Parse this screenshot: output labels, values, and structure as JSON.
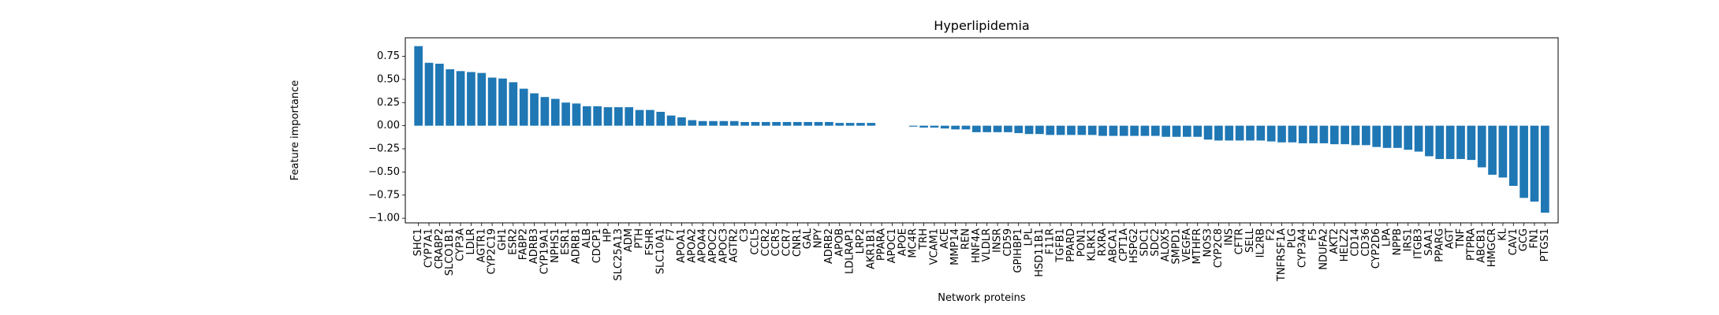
{
  "chart_data": {
    "type": "bar",
    "title": "Hyperlipidemia",
    "xlabel": "Network proteins",
    "ylabel": "Feature importance",
    "ylim": [
      -1.05,
      0.95
    ],
    "yticks": [
      -1.0,
      -0.75,
      -0.5,
      -0.25,
      0.0,
      0.25,
      0.5,
      0.75
    ],
    "ytick_labels": [
      "−1.00",
      "−0.75",
      "−0.50",
      "−0.25",
      "0.00",
      "0.25",
      "0.50",
      "0.75"
    ],
    "grid": false,
    "bar_color": "#1f77b4",
    "categories": [
      "SHC1",
      "CYP7A1",
      "CRABP2",
      "SLCO1B1",
      "CYP3A",
      "LDLR",
      "AGTR1",
      "CYP2C19",
      "GH1",
      "ESR2",
      "FABP2",
      "ADRB3",
      "CYP19A1",
      "NPHS1",
      "ESR1",
      "ADRB1",
      "ALB",
      "CDCP1",
      "HP",
      "SLC25A13",
      "ADM",
      "PTH",
      "FSHR",
      "SLC10A1",
      "F7",
      "APOA1",
      "APOA2",
      "APOA4",
      "APOC2",
      "APOC3",
      "AGTR2",
      "C3",
      "CCL5",
      "CCR2",
      "CCR5",
      "CCR7",
      "CNR1",
      "GAL",
      "NPY",
      "ADRB2",
      "APOB",
      "LDLRAP1",
      "LRP2",
      "AKR1B1",
      "PPARA",
      "APOC1",
      "APOE",
      "MC4R",
      "TRH",
      "VCAM1",
      "ACE",
      "MMP14",
      "REN",
      "HNF4A",
      "VLDLR",
      "INSR",
      "CD59",
      "GPIHBP1",
      "LPL",
      "HSD11B1",
      "F11R",
      "TGFB1",
      "PPARD",
      "PON1",
      "KLRK1",
      "RXRA",
      "ABCA1",
      "CPT1A",
      "HSPG2",
      "SDC1",
      "SDC2",
      "ALOX5",
      "SMPD1",
      "VEGFA",
      "MTHFR",
      "NOS3",
      "CYP2C8",
      "INS",
      "CFTR",
      "SELL",
      "IL2RB",
      "F2",
      "TNFRSF1A",
      "PLG",
      "CYP3A4",
      "F5",
      "NDUFA2",
      "AKT2",
      "HELZ2",
      "CD14",
      "CD36",
      "CYP2D6",
      "LPA",
      "NPPB",
      "IRS1",
      "ITGB3",
      "SAA1",
      "PPARG",
      "AGT",
      "TNF",
      "PTPRA",
      "ABCB1",
      "HMGCR",
      "KL",
      "CAV1",
      "GCG",
      "FN1",
      "PTGS1"
    ],
    "values": [
      0.86,
      0.68,
      0.67,
      0.61,
      0.59,
      0.58,
      0.57,
      0.52,
      0.51,
      0.47,
      0.4,
      0.35,
      0.31,
      0.29,
      0.25,
      0.24,
      0.21,
      0.21,
      0.2,
      0.2,
      0.2,
      0.17,
      0.17,
      0.15,
      0.11,
      0.09,
      0.06,
      0.05,
      0.05,
      0.05,
      0.05,
      0.04,
      0.04,
      0.04,
      0.04,
      0.04,
      0.04,
      0.04,
      0.04,
      0.04,
      0.03,
      0.03,
      0.03,
      0.03,
      0.0,
      0.0,
      0.0,
      -0.01,
      -0.02,
      -0.02,
      -0.03,
      -0.04,
      -0.04,
      -0.07,
      -0.07,
      -0.07,
      -0.07,
      -0.08,
      -0.09,
      -0.09,
      -0.1,
      -0.1,
      -0.1,
      -0.1,
      -0.1,
      -0.11,
      -0.11,
      -0.11,
      -0.11,
      -0.11,
      -0.11,
      -0.12,
      -0.12,
      -0.12,
      -0.12,
      -0.15,
      -0.16,
      -0.16,
      -0.16,
      -0.16,
      -0.16,
      -0.17,
      -0.18,
      -0.18,
      -0.19,
      -0.19,
      -0.19,
      -0.2,
      -0.2,
      -0.21,
      -0.21,
      -0.23,
      -0.24,
      -0.24,
      -0.26,
      -0.28,
      -0.33,
      -0.36,
      -0.36,
      -0.36,
      -0.37,
      -0.45,
      -0.53,
      -0.56,
      -0.65,
      -0.78,
      -0.82,
      -0.94
    ]
  }
}
